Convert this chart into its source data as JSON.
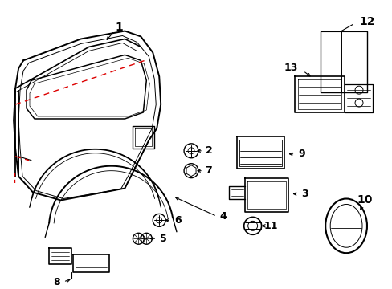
{
  "bg_color": "#ffffff",
  "lc": "#000000",
  "rc": "#dd0000",
  "figsize": [
    4.89,
    3.6
  ],
  "dpi": 100,
  "parts": {
    "label_fontsize": 9
  }
}
